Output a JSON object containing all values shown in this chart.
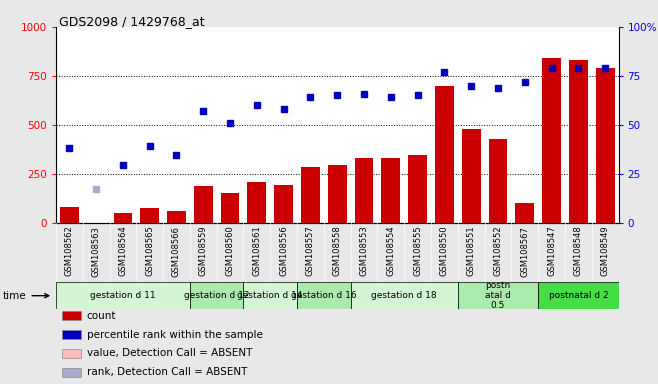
{
  "title": "GDS2098 / 1429768_at",
  "samples": [
    "GSM108562",
    "GSM108563",
    "GSM108564",
    "GSM108565",
    "GSM108566",
    "GSM108559",
    "GSM108560",
    "GSM108561",
    "GSM108556",
    "GSM108557",
    "GSM108558",
    "GSM108553",
    "GSM108554",
    "GSM108555",
    "GSM108550",
    "GSM108551",
    "GSM108552",
    "GSM108567",
    "GSM108547",
    "GSM108548",
    "GSM108549"
  ],
  "count_values": [
    80,
    0,
    50,
    75,
    60,
    185,
    150,
    210,
    195,
    285,
    295,
    330,
    330,
    345,
    700,
    480,
    425,
    100,
    840,
    830,
    790
  ],
  "count_absent": [
    false,
    true,
    false,
    false,
    false,
    false,
    false,
    false,
    false,
    false,
    false,
    false,
    false,
    false,
    false,
    false,
    false,
    false,
    false,
    false,
    false
  ],
  "percentile_values": [
    380,
    170,
    295,
    390,
    345,
    570,
    510,
    600,
    580,
    640,
    650,
    655,
    640,
    650,
    770,
    700,
    690,
    720,
    790,
    790,
    790
  ],
  "percentile_absent": [
    false,
    true,
    false,
    false,
    false,
    false,
    false,
    false,
    false,
    false,
    false,
    false,
    false,
    false,
    false,
    false,
    false,
    false,
    false,
    false,
    false
  ],
  "groups": [
    {
      "label": "gestation d 11",
      "start": 0,
      "end": 5,
      "color": "#d4f5d4"
    },
    {
      "label": "gestation d 12",
      "start": 5,
      "end": 7,
      "color": "#aaeaaa"
    },
    {
      "label": "gestation d 14",
      "start": 7,
      "end": 9,
      "color": "#d4f5d4"
    },
    {
      "label": "gestation d 16",
      "start": 9,
      "end": 11,
      "color": "#aaeaaa"
    },
    {
      "label": "gestation d 18",
      "start": 11,
      "end": 15,
      "color": "#d4f5d4"
    },
    {
      "label": "postn\natal d\n0.5",
      "start": 15,
      "end": 18,
      "color": "#aaeaaa"
    },
    {
      "label": "postnatal d 2",
      "start": 18,
      "end": 21,
      "color": "#44dd44"
    }
  ],
  "bar_color": "#cc0000",
  "bar_absent_color": "#ffbbbb",
  "dot_color": "#0000bb",
  "dot_absent_color": "#aaaacc",
  "ylim_left": [
    0,
    1000
  ],
  "yticks_left": [
    0,
    250,
    500,
    750,
    1000
  ],
  "ytick_labels_left": [
    "0",
    "250",
    "500",
    "750",
    "1000"
  ],
  "ytick_labels_right": [
    "0",
    "25",
    "50",
    "75",
    "100%"
  ],
  "background_color": "#e8e8e8",
  "plot_bg": "#ffffff",
  "xtick_bg": "#d8d8d8",
  "legend": [
    {
      "label": "count",
      "color": "#cc0000"
    },
    {
      "label": "percentile rank within the sample",
      "color": "#0000bb"
    },
    {
      "label": "value, Detection Call = ABSENT",
      "color": "#ffbbbb"
    },
    {
      "label": "rank, Detection Call = ABSENT",
      "color": "#aaaacc"
    }
  ]
}
